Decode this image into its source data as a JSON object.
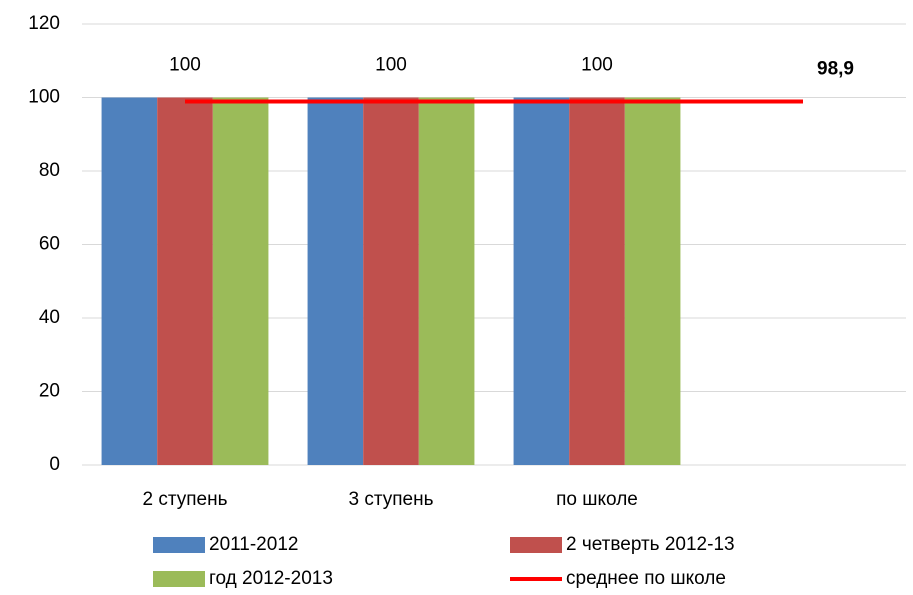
{
  "chart_data": {
    "type": "bar",
    "categories": [
      "2 ступень",
      "3 ступень",
      "по школе",
      null
    ],
    "series": [
      {
        "name": "2011-2012",
        "color": "#4f81bd",
        "values": [
          100,
          100,
          100,
          null
        ]
      },
      {
        "name": "2 четверть 2012-13",
        "color": "#c0504d",
        "values": [
          100,
          100,
          100,
          null
        ],
        "value_labels": [
          "100",
          "100",
          "100",
          null
        ]
      },
      {
        "name": "год 2012-2013",
        "color": "#9bbb59",
        "values": [
          100,
          100,
          100,
          null
        ]
      },
      {
        "name": "среднее по школе",
        "type": "line",
        "color": "#ff0000",
        "values": [
          98.9,
          98.9,
          98.9,
          98.9
        ],
        "value_labels": [
          null,
          null,
          null,
          "98,9"
        ]
      }
    ],
    "ylim": [
      0,
      120
    ],
    "yticks": [
      0,
      20,
      40,
      60,
      80,
      100,
      120
    ],
    "grid": true,
    "legend": "bottom"
  }
}
